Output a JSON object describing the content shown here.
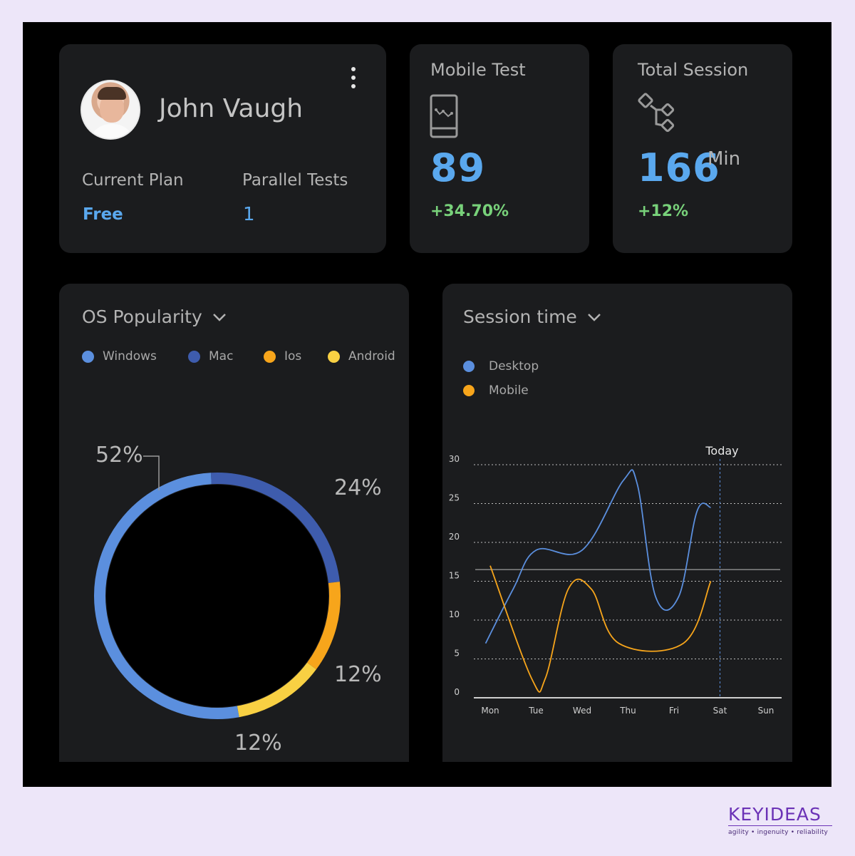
{
  "profile": {
    "name": "John Vaugh",
    "plan_label": "Current Plan",
    "plan_value": "Free",
    "parallel_label": "Parallel Tests",
    "parallel_value": "1"
  },
  "mobile_test": {
    "title": "Mobile Test",
    "value": "89",
    "change": "+34.70%",
    "icon": "phone-chart-icon"
  },
  "total_session": {
    "title": "Total Session",
    "value": "166",
    "unit": "Min",
    "change": "+12%",
    "icon": "network-icon"
  },
  "os_popularity": {
    "title": "OS Popularity",
    "legend": [
      {
        "label": "Windows",
        "color": "#5b8fde"
      },
      {
        "label": "Mac",
        "color": "#3e5cad"
      },
      {
        "label": "Ios",
        "color": "#f7a51b"
      },
      {
        "label": "Android",
        "color": "#f8d043"
      }
    ],
    "chart_data": {
      "type": "pie",
      "categories": [
        "Windows",
        "Mac",
        "Ios",
        "Android"
      ],
      "values": [
        52,
        24,
        12,
        12
      ],
      "labels": [
        "52%",
        "24%",
        "12%",
        "12%"
      ]
    }
  },
  "session_time": {
    "title": "Session time",
    "legend": [
      {
        "label": "Desktop",
        "color": "#5b8fde"
      },
      {
        "label": "Mobile",
        "color": "#f7a51b"
      }
    ],
    "today_label": "Today",
    "chart_data": {
      "type": "line",
      "x": [
        "Mon",
        "Tue",
        "Wed",
        "Thu",
        "Fri",
        "Sat",
        "Sun"
      ],
      "y_ticks": [
        0,
        5,
        10,
        15,
        20,
        25,
        30
      ],
      "ylim": [
        0,
        30
      ],
      "series": [
        {
          "name": "Desktop",
          "points": [
            [
              -0.1,
              7
            ],
            [
              0.5,
              14
            ],
            [
              1.0,
              19
            ],
            [
              2.0,
              19
            ],
            [
              2.9,
              28
            ],
            [
              3.2,
              27.5
            ],
            [
              3.6,
              13
            ],
            [
              4.1,
              13
            ],
            [
              4.5,
              24
            ],
            [
              4.8,
              24.5
            ]
          ]
        },
        {
          "name": "Mobile",
          "points": [
            [
              0,
              17
            ],
            [
              0.9,
              2.5
            ],
            [
              1.2,
              2.5
            ],
            [
              1.7,
              14
            ],
            [
              2.2,
              14
            ],
            [
              2.8,
              7
            ],
            [
              4.2,
              7
            ],
            [
              4.8,
              15
            ]
          ]
        }
      ],
      "today_index": 5
    }
  },
  "brand": {
    "name": "KEYIDEAS",
    "tagline": "agility  •  ingenuity  •  reliability"
  }
}
